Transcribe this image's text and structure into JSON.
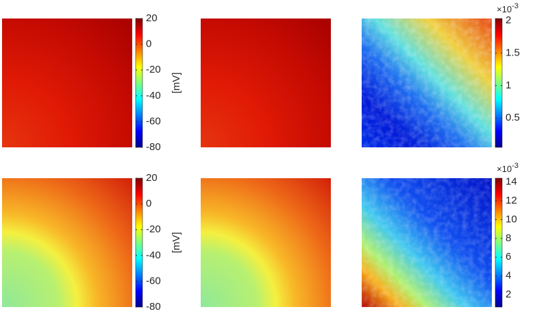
{
  "chart_data": [
    {
      "type": "colorbar",
      "label": "[mV]",
      "clim": [
        -80,
        20
      ],
      "cticks": [
        20,
        0,
        -20,
        -40,
        -60,
        -80
      ],
      "colormap": "jet"
    },
    {
      "type": "colorbar",
      "scale_base": "×10",
      "scale_exponent": "-3",
      "clim": [
        0.05,
        2.03
      ],
      "cticks": [
        2,
        1.5,
        1,
        0.5
      ],
      "colormap": "jet"
    },
    {
      "type": "colorbar",
      "label": "[mV]",
      "clim": [
        -80,
        20
      ],
      "cticks": [
        20,
        0,
        -20,
        -40,
        -60,
        -80
      ],
      "colormap": "jet"
    },
    {
      "type": "colorbar",
      "scale_base": "×10",
      "scale_exponent": "-3",
      "clim": [
        0.7,
        14.4
      ],
      "cticks": [
        14,
        12,
        10,
        8,
        6,
        4,
        2
      ],
      "colormap": "jet"
    }
  ]
}
